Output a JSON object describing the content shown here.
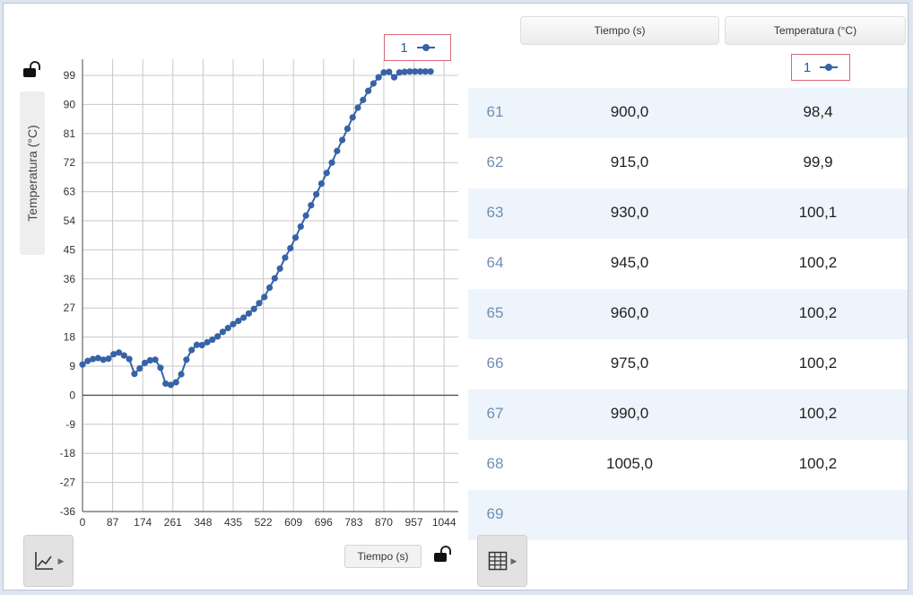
{
  "graph": {
    "y_axis_label": "Temperatura (°C)",
    "x_axis_button": "Tiempo (s)",
    "series_badge_number": "1",
    "icons": {
      "y_lock": "unlocked-lock-icon",
      "x_lock": "unlocked-lock-icon",
      "graph_tool": "graph-tool-icon"
    }
  },
  "chart_data": {
    "type": "scatter",
    "title": "",
    "xlabel": "Tiempo (s)",
    "ylabel": "Temperatura (°C)",
    "xlim": [
      0,
      1085
    ],
    "ylim": [
      -36,
      104
    ],
    "x_ticks": [
      "0",
      "87",
      "174",
      "261",
      "348",
      "435",
      "522",
      "609",
      "696",
      "783",
      "870",
      "957",
      "1044"
    ],
    "y_ticks": [
      "99",
      "90",
      "81",
      "72",
      "63",
      "54",
      "45",
      "36",
      "27",
      "18",
      "9",
      "0",
      "-9",
      "-18",
      "-27",
      "-36"
    ],
    "grid": true,
    "color": "#3763a6",
    "series": [
      {
        "x": [
          0,
          15,
          30,
          45,
          60,
          75,
          90,
          105,
          120,
          135,
          150,
          165,
          180,
          195,
          210,
          225,
          240,
          255,
          270,
          285,
          300,
          315,
          330,
          345,
          360,
          375,
          390,
          405,
          420,
          435,
          450,
          465,
          480,
          495,
          510,
          525,
          540,
          555,
          570,
          585,
          600,
          615,
          630,
          645,
          660,
          675,
          690,
          705,
          720,
          735,
          750,
          765,
          780,
          795,
          810,
          825,
          840,
          855,
          870,
          885,
          900,
          915,
          930,
          945,
          960,
          975,
          990,
          1005
        ],
        "y": [
          9.5,
          10.6,
          11.2,
          11.5,
          11.0,
          11.3,
          12.7,
          13.2,
          12.3,
          11.2,
          6.6,
          8.3,
          10.0,
          10.8,
          11.0,
          8.5,
          3.6,
          3.2,
          4.0,
          6.5,
          11.0,
          14.0,
          15.6,
          15.5,
          16.4,
          17.2,
          18.2,
          19.6,
          20.8,
          22.0,
          23.0,
          24.0,
          25.3,
          26.7,
          28.5,
          30.4,
          33.3,
          36.2,
          39.2,
          42.6,
          45.5,
          48.8,
          52.2,
          55.6,
          58.8,
          62.2,
          65.5,
          68.8,
          72.0,
          75.6,
          79.0,
          82.5,
          86.0,
          89.0,
          91.4,
          94.2,
          96.5,
          98.4,
          99.9,
          100.1,
          98.4,
          99.9,
          100.1,
          100.2,
          100.2,
          100.2,
          100.2,
          100.2
        ]
      }
    ]
  },
  "table": {
    "columns": [
      "Tiempo (s)",
      "Temperatura (°C)"
    ],
    "series_badge_number": "1",
    "rows": [
      {
        "n": "61",
        "time": "900,0",
        "temp": "98,4"
      },
      {
        "n": "62",
        "time": "915,0",
        "temp": "99,9"
      },
      {
        "n": "63",
        "time": "930,0",
        "temp": "100,1"
      },
      {
        "n": "64",
        "time": "945,0",
        "temp": "100,2"
      },
      {
        "n": "65",
        "time": "960,0",
        "temp": "100,2"
      },
      {
        "n": "66",
        "time": "975,0",
        "temp": "100,2"
      },
      {
        "n": "67",
        "time": "990,0",
        "temp": "100,2"
      },
      {
        "n": "68",
        "time": "1005,0",
        "temp": "100,2"
      },
      {
        "n": "69",
        "time": "",
        "temp": ""
      }
    ],
    "icons": {
      "table_tool": "table-grid-icon"
    }
  }
}
